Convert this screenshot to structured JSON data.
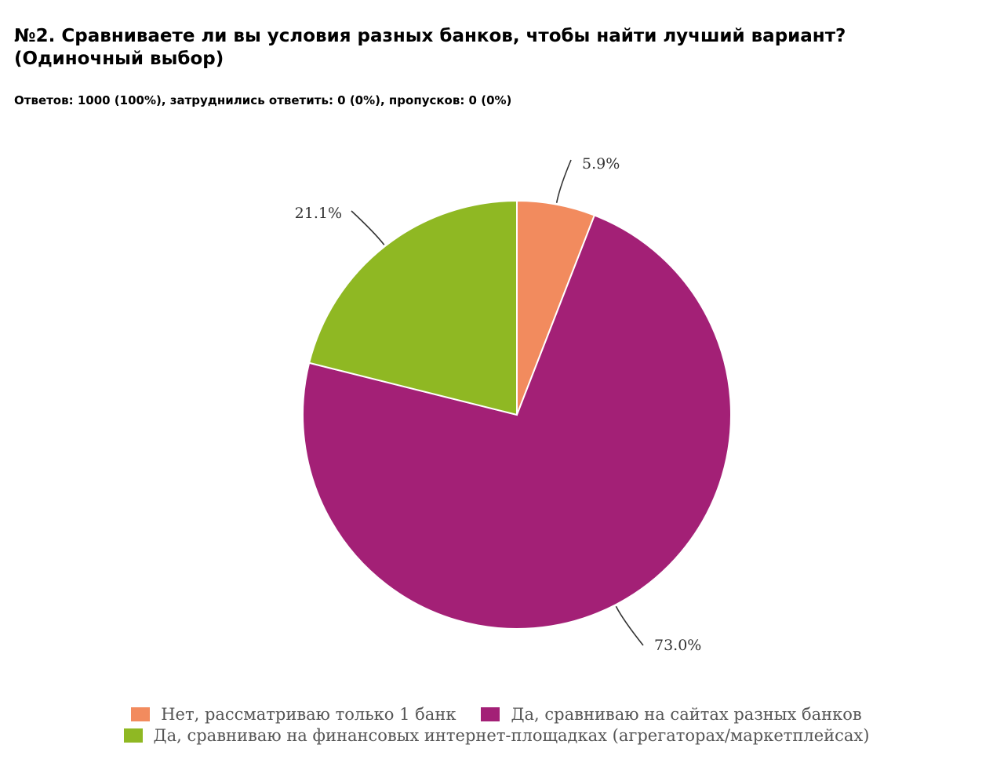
{
  "title": "№2. Сравниваете ли вы условия разных банков, чтобы найти лучший вариант? (Одиночный выбор)",
  "subtitle": "Ответов: 1000 (100%), затруднились ответить: 0 (0%), пропусков: 0 (0%)",
  "chart_data": {
    "type": "pie",
    "title": "№2. Сравниваете ли вы условия разных банков, чтобы найти лучший вариант? (Одиночный выбор)",
    "legend_position": "bottom",
    "slices": [
      {
        "label": "Нет, рассматриваю только 1 банк",
        "value": 5.9,
        "display": "5.9%",
        "color": "#f28b5e"
      },
      {
        "label": "Да, сравниваю на сайтах разных банков",
        "value": 73.0,
        "display": "73.0%",
        "color": "#a32076"
      },
      {
        "label": "Да, сравниваю на финансовых интернет-площадках (агрегаторах/маркетплейсах)",
        "value": 21.1,
        "display": "21.1%",
        "color": "#8fb823"
      }
    ]
  }
}
